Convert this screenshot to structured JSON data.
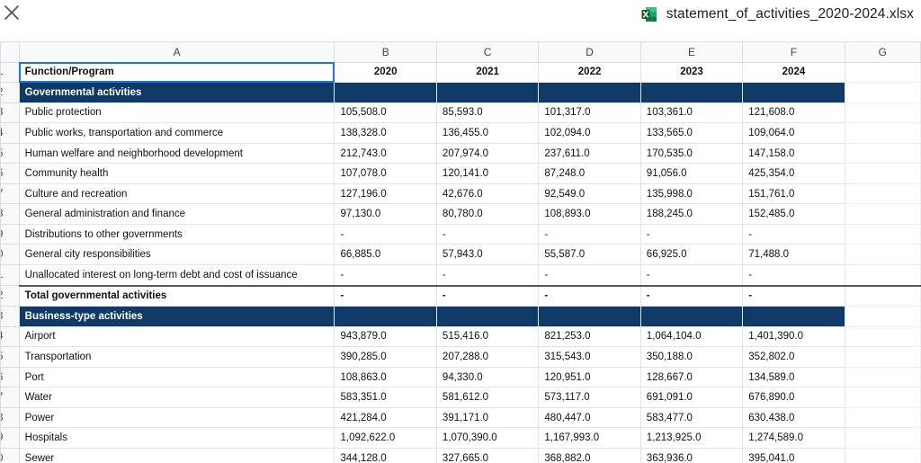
{
  "window": {
    "file_name": "statement_of_activities_2020-2024.xlsx",
    "close_icon": "close-icon",
    "file_icon": "excel-file-icon"
  },
  "columns": [
    "A",
    "B",
    "C",
    "D",
    "E",
    "F",
    "G"
  ],
  "row_numbers": [
    "1",
    "2",
    "3",
    "4",
    "5",
    "6",
    "7",
    "8",
    "9",
    "0",
    "1",
    "2",
    "3",
    "4",
    "5",
    "6",
    "7",
    "8",
    "9",
    "0"
  ],
  "header_row": {
    "label": "Function/Program",
    "years": [
      "2020",
      "2021",
      "2022",
      "2023",
      "2024"
    ]
  },
  "sections": {
    "governmental": "Governmental activities",
    "business": "Business-type activities"
  },
  "governmental_rows": [
    {
      "label": "Public protection",
      "values": [
        "105,508.0",
        "85,593.0",
        "101,317.0",
        "103,361.0",
        "121,608.0"
      ]
    },
    {
      "label": "Public works, transportation and commerce",
      "values": [
        "138,328.0",
        "136,455.0",
        "102,094.0",
        "133,565.0",
        "109,064.0"
      ]
    },
    {
      "label": "Human welfare and neighborhood development",
      "values": [
        "212,743.0",
        "207,974.0",
        "237,611.0",
        "170,535.0",
        "147,158.0"
      ]
    },
    {
      "label": "Community health",
      "values": [
        "107,078.0",
        "120,141.0",
        "87,248.0",
        "91,056.0",
        "425,354.0"
      ]
    },
    {
      "label": "Culture and recreation",
      "values": [
        "127,196.0",
        "42,676.0",
        "92,549.0",
        "135,998.0",
        "151,761.0"
      ]
    },
    {
      "label": "General administration and finance",
      "values": [
        "97,130.0",
        "80,780.0",
        "108,893.0",
        "188,245.0",
        "152,485.0"
      ]
    },
    {
      "label": "Distributions to other governments",
      "values": [
        "-",
        "-",
        "-",
        "-",
        "-"
      ]
    },
    {
      "label": "General city responsibilities",
      "values": [
        "66,885.0",
        "57,943.0",
        "55,587.0",
        "66,925.0",
        "71,488.0"
      ]
    },
    {
      "label": "Unallocated interest on long-term debt and cost of issuance",
      "values": [
        "-",
        "-",
        "-",
        "-",
        "-"
      ]
    }
  ],
  "total_row": {
    "label": "Total governmental activities",
    "values": [
      "-",
      "-",
      "-",
      "-",
      "-"
    ]
  },
  "business_rows": [
    {
      "label": "Airport",
      "values": [
        "943,879.0",
        "515,416.0",
        "821,253.0",
        "1,064,104.0",
        "1,401,390.0"
      ]
    },
    {
      "label": "Transportation",
      "values": [
        "390,285.0",
        "207,288.0",
        "315,543.0",
        "350,188.0",
        "352,802.0"
      ]
    },
    {
      "label": "Port",
      "values": [
        "108,863.0",
        "94,330.0",
        "120,951.0",
        "128,667.0",
        "134,589.0"
      ]
    },
    {
      "label": "Water",
      "values": [
        "583,351.0",
        "581,612.0",
        "573,117.0",
        "691,091.0",
        "676,890.0"
      ]
    },
    {
      "label": "Power",
      "values": [
        "421,284.0",
        "391,171.0",
        "480,447.0",
        "583,477.0",
        "630,438.0"
      ]
    },
    {
      "label": "Hospitals",
      "values": [
        "1,092,622.0",
        "1,070,390.0",
        "1,167,993.0",
        "1,213,925.0",
        "1,274,589.0"
      ]
    },
    {
      "label": "Sewer",
      "values": [
        "344,128.0",
        "327,665.0",
        "368,882.0",
        "363,936.0",
        "395,041.0"
      ]
    }
  ],
  "colors": {
    "section_fill": "#0f3a68",
    "section_text": "#ffffff",
    "selection": "#1a73e8",
    "excel_green": "#1d6f42"
  }
}
